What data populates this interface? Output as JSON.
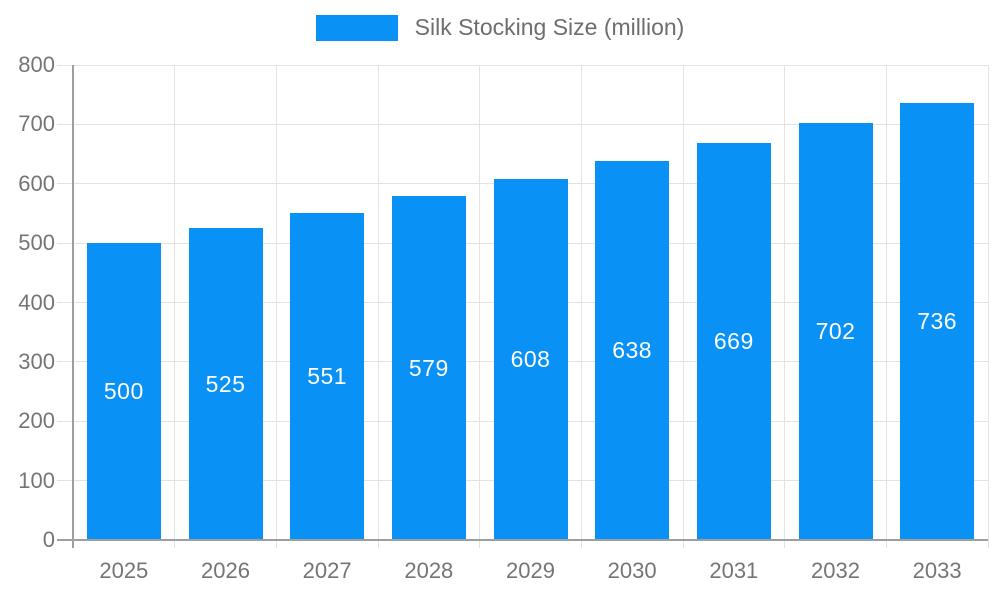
{
  "chart": {
    "colors": {
      "bar": "#0991f5",
      "grid": "#e3e3e3",
      "axis": "#9e9e9e",
      "tick_label": "#757575",
      "legend_text": "#6e6e6e",
      "bar_label": "#ffffff",
      "background": "#ffffff"
    }
  },
  "chart_data": {
    "type": "bar",
    "title": "",
    "categories": [
      "2025",
      "2026",
      "2027",
      "2028",
      "2029",
      "2030",
      "2031",
      "2032",
      "2033"
    ],
    "series": [
      {
        "name": "Silk Stocking Size (million)",
        "values": [
          500,
          525,
          551,
          579,
          608,
          638,
          669,
          702,
          736
        ]
      }
    ],
    "bar_labels": [
      500,
      525,
      551,
      579,
      608,
      638,
      669,
      702,
      736
    ],
    "xlabel": "",
    "ylabel": "",
    "ylim": [
      0,
      800
    ],
    "yticks": [
      0,
      100,
      200,
      300,
      400,
      500,
      600,
      700,
      800
    ],
    "grid": true,
    "legend_position": "top"
  }
}
